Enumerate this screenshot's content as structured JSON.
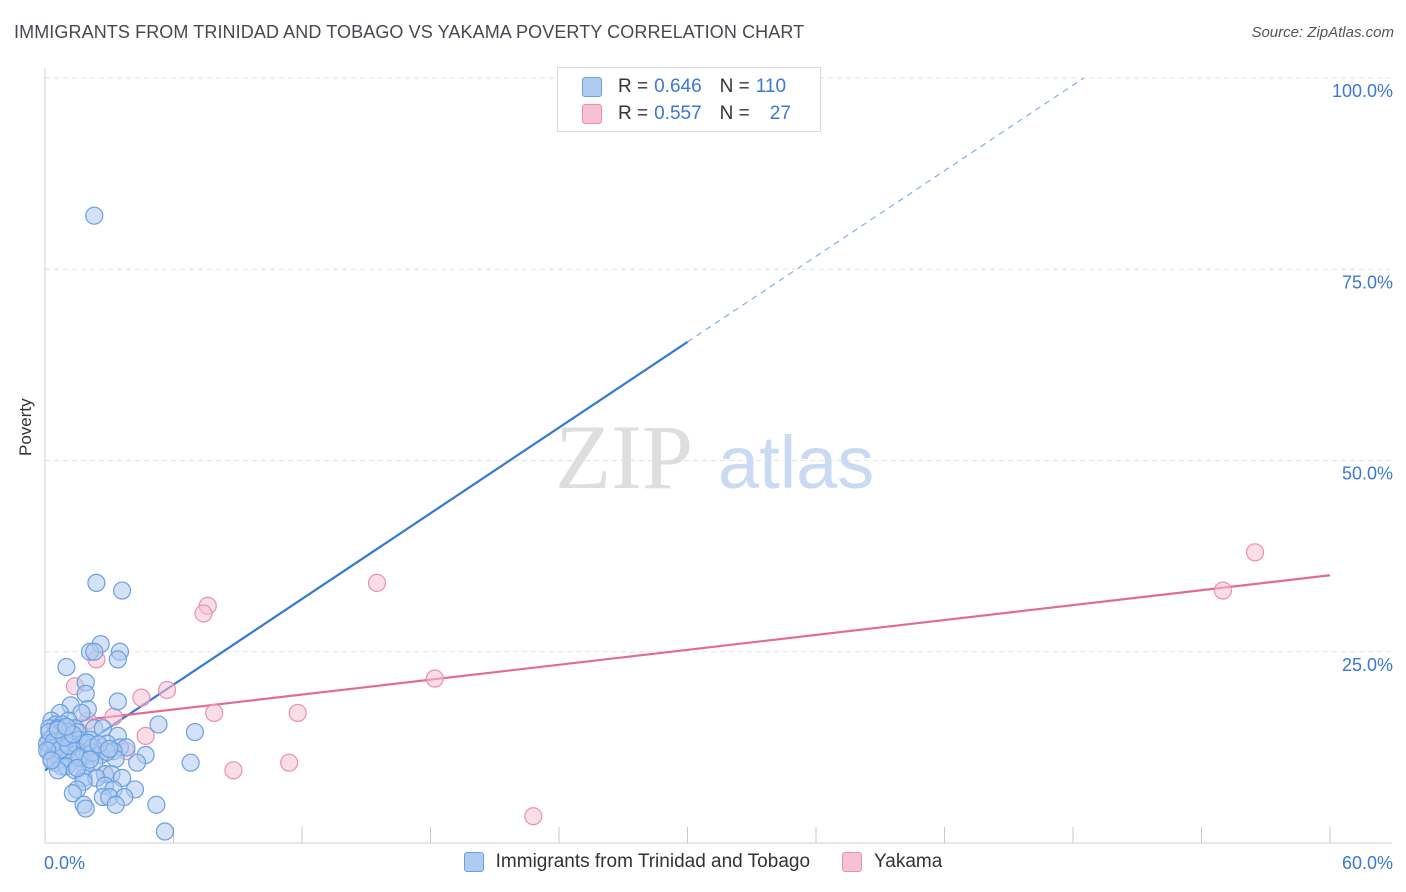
{
  "header": {
    "title": "IMMIGRANTS FROM TRINIDAD AND TOBAGO VS YAKAMA POVERTY CORRELATION CHART",
    "source": "Source: ZipAtlas.com"
  },
  "watermark": {
    "zip": "ZIP",
    "atlas": "atlas"
  },
  "legend": {
    "r_label": "R =",
    "n_label": "N =",
    "series": [
      {
        "r": "0.646",
        "n": "110"
      },
      {
        "r": "0.557",
        "n": "27"
      }
    ]
  },
  "colors": {
    "blue_fill": "#aecbf0",
    "blue_stroke": "#6aa0e0",
    "blue_line": "#2f7ad6",
    "pink_fill": "#f6c2d3",
    "pink_stroke": "#eb8fae",
    "pink_line": "#e36a98",
    "axis_text": "#3a78d4"
  },
  "chart_data": {
    "type": "scatter",
    "title": "IMMIGRANTS FROM TRINIDAD AND TOBAGO VS YAKAMA POVERTY CORRELATION CHART",
    "xlabel": "",
    "ylabel": "Poverty",
    "xlim": [
      0,
      60
    ],
    "ylim": [
      0,
      100
    ],
    "x_tick_labels": [
      "0.0%",
      "60.0%"
    ],
    "y_ticks": [
      25,
      50,
      75,
      100
    ],
    "y_tick_labels": [
      "25.0%",
      "50.0%",
      "75.0%",
      "100.0%"
    ],
    "grid": true,
    "series": [
      {
        "name": "Immigrants from Trinidad and Tobago",
        "color": "blue",
        "R": 0.646,
        "N": 110,
        "trend": {
          "x0": 0,
          "y0": 9.5,
          "x1": 30,
          "y1": 65.5,
          "dash_x1": 48.5,
          "dash_y1": 100
        },
        "points": [
          [
            2.3,
            82
          ],
          [
            2.4,
            34
          ],
          [
            3.6,
            33
          ],
          [
            2.6,
            26
          ],
          [
            2.1,
            25
          ],
          [
            2.3,
            25
          ],
          [
            3.5,
            25
          ],
          [
            3.4,
            24
          ],
          [
            1.0,
            23
          ],
          [
            1.9,
            21
          ],
          [
            1.9,
            19.5
          ],
          [
            3.4,
            18.5
          ],
          [
            1.2,
            18
          ],
          [
            2.0,
            17.5
          ],
          [
            1.7,
            17
          ],
          [
            0.7,
            17
          ],
          [
            1.1,
            16
          ],
          [
            0.3,
            16
          ],
          [
            0.5,
            15.5
          ],
          [
            0.8,
            15.5
          ],
          [
            1.4,
            15
          ],
          [
            2.3,
            15
          ],
          [
            2.7,
            15
          ],
          [
            0.2,
            15
          ],
          [
            0.6,
            15
          ],
          [
            5.3,
            15.5
          ],
          [
            1.1,
            14.5
          ],
          [
            1.5,
            14.5
          ],
          [
            0.4,
            14
          ],
          [
            3.4,
            14
          ],
          [
            0.2,
            13.5
          ],
          [
            0.9,
            13.5
          ],
          [
            1.6,
            13.5
          ],
          [
            2.1,
            13.5
          ],
          [
            7.0,
            14.5
          ],
          [
            0.1,
            13
          ],
          [
            0.5,
            13
          ],
          [
            1.2,
            13
          ],
          [
            1.8,
            13
          ],
          [
            2.9,
            13
          ],
          [
            0.3,
            12.5
          ],
          [
            0.8,
            12.5
          ],
          [
            1.3,
            12.5
          ],
          [
            2.2,
            12.5
          ],
          [
            3.5,
            12.5
          ],
          [
            3.8,
            12.5
          ],
          [
            0.2,
            12
          ],
          [
            0.6,
            12
          ],
          [
            1.0,
            12
          ],
          [
            1.5,
            12
          ],
          [
            2.5,
            12
          ],
          [
            3.2,
            12
          ],
          [
            0.4,
            11.5
          ],
          [
            0.9,
            11.5
          ],
          [
            1.4,
            11.5
          ],
          [
            2.0,
            11.5
          ],
          [
            2.6,
            11.5
          ],
          [
            4.7,
            11.5
          ],
          [
            0.3,
            11
          ],
          [
            0.7,
            11
          ],
          [
            1.1,
            11
          ],
          [
            1.7,
            11
          ],
          [
            3.3,
            11
          ],
          [
            0.5,
            10.5
          ],
          [
            1.2,
            10.5
          ],
          [
            2.3,
            10.5
          ],
          [
            4.3,
            10.5
          ],
          [
            6.8,
            10.5
          ],
          [
            0.8,
            10
          ],
          [
            1.0,
            10
          ],
          [
            1.9,
            10
          ],
          [
            0.6,
            9.5
          ],
          [
            1.4,
            9.5
          ],
          [
            2.8,
            9
          ],
          [
            3.1,
            9
          ],
          [
            1.8,
            8.5
          ],
          [
            2.4,
            8.5
          ],
          [
            3.6,
            8.5
          ],
          [
            1.8,
            8
          ],
          [
            2.8,
            7.5
          ],
          [
            1.5,
            7
          ],
          [
            3.2,
            7
          ],
          [
            4.2,
            7
          ],
          [
            1.3,
            6.5
          ],
          [
            2.7,
            6
          ],
          [
            3.0,
            6
          ],
          [
            3.7,
            6
          ],
          [
            1.8,
            5
          ],
          [
            3.3,
            5
          ],
          [
            5.2,
            5
          ],
          [
            1.9,
            4.5
          ],
          [
            5.6,
            1.5
          ],
          [
            0.2,
            14.5
          ],
          [
            0.4,
            13.2
          ],
          [
            0.7,
            12.2
          ],
          [
            1.1,
            12.7
          ],
          [
            1.6,
            11.2
          ],
          [
            2.2,
            11.8
          ],
          [
            2.9,
            11.9
          ],
          [
            0.1,
            12.1
          ],
          [
            0.9,
            13.8
          ],
          [
            1.3,
            14.2
          ],
          [
            2.0,
            13.1
          ],
          [
            2.5,
            12.9
          ],
          [
            0.3,
            10.8
          ],
          [
            0.6,
            14.8
          ],
          [
            1.0,
            15.2
          ],
          [
            1.5,
            9.8
          ],
          [
            2.1,
            10.9
          ],
          [
            3.0,
            12.3
          ]
        ]
      },
      {
        "name": "Yakama",
        "color": "pink",
        "R": 0.557,
        "N": 27,
        "trend": {
          "x0": 0,
          "y0": 15.5,
          "x1": 60,
          "y1": 35
        },
        "points": [
          [
            56.5,
            38
          ],
          [
            15.5,
            34
          ],
          [
            55.0,
            33
          ],
          [
            7.6,
            31
          ],
          [
            7.4,
            30
          ],
          [
            2.4,
            24
          ],
          [
            18.2,
            21.5
          ],
          [
            1.4,
            20.5
          ],
          [
            5.7,
            20
          ],
          [
            4.5,
            19
          ],
          [
            7.9,
            17
          ],
          [
            11.8,
            17
          ],
          [
            3.2,
            16.5
          ],
          [
            2.0,
            16
          ],
          [
            0.5,
            15.5
          ],
          [
            1.0,
            15
          ],
          [
            1.6,
            14.5
          ],
          [
            4.7,
            14
          ],
          [
            0.3,
            13.5
          ],
          [
            1.2,
            13
          ],
          [
            2.6,
            12.5
          ],
          [
            0.8,
            12
          ],
          [
            3.8,
            12
          ],
          [
            11.4,
            10.5
          ],
          [
            8.8,
            9.5
          ],
          [
            2.8,
            9
          ],
          [
            22.8,
            3.5
          ]
        ]
      }
    ]
  }
}
